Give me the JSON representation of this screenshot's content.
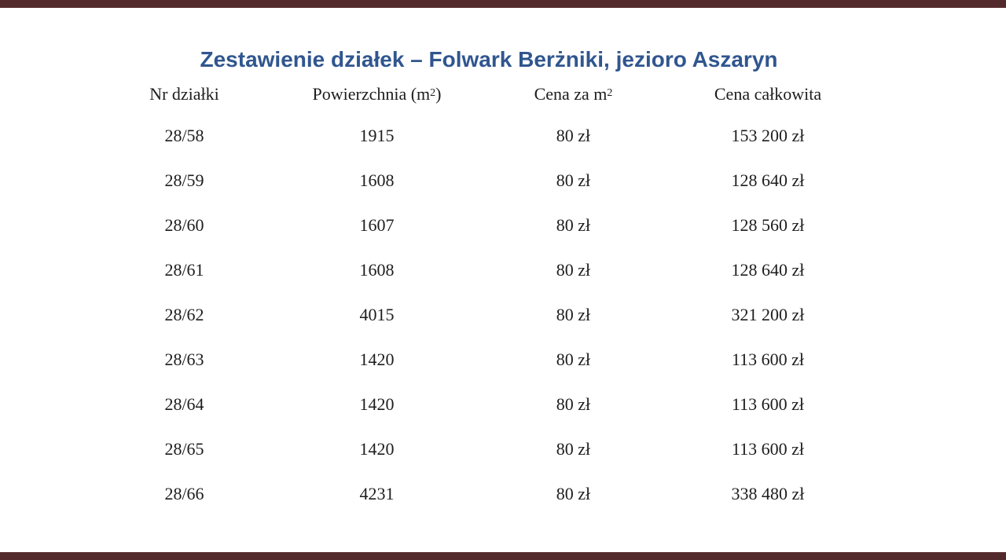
{
  "slide": {
    "background": "#ffffff",
    "accent_bar_color": "#532a2b",
    "title_color": "#30568f"
  },
  "title": {
    "text": "Zestawienie działek – Folwark Berżniki, jezioro Aszaryn"
  },
  "table": {
    "headers": {
      "col1": "Nr działki",
      "col2_pre": "Powierzchnia (m",
      "col2_sup": "2",
      "col2_post": ")",
      "col3_pre": "Cena za m",
      "col3_sup": "2",
      "col4": "Cena całkowita"
    },
    "rows": [
      {
        "nr": "28/58",
        "area": "1915",
        "price": "80 zł",
        "total": "153 200 zł"
      },
      {
        "nr": "28/59",
        "area": "1608",
        "price": "80 zł",
        "total": "128 640 zł"
      },
      {
        "nr": "28/60",
        "area": "1607",
        "price": "80 zł",
        "total": "128 560 zł"
      },
      {
        "nr": "28/61",
        "area": "1608",
        "price": "80 zł",
        "total": "128 640 zł"
      },
      {
        "nr": "28/62",
        "area": "4015",
        "price": "80 zł",
        "total": "321 200 zł"
      },
      {
        "nr": "28/63",
        "area": "1420",
        "price": "80 zł",
        "total": "113 600 zł"
      },
      {
        "nr": "28/64",
        "area": "1420",
        "price": "80 zł",
        "total": "113 600 zł"
      },
      {
        "nr": "28/65",
        "area": "1420",
        "price": "80 zł",
        "total": "113 600 zł"
      },
      {
        "nr": "28/66",
        "area": "4231",
        "price": "80 zł",
        "total": "338 480 zł"
      }
    ]
  }
}
